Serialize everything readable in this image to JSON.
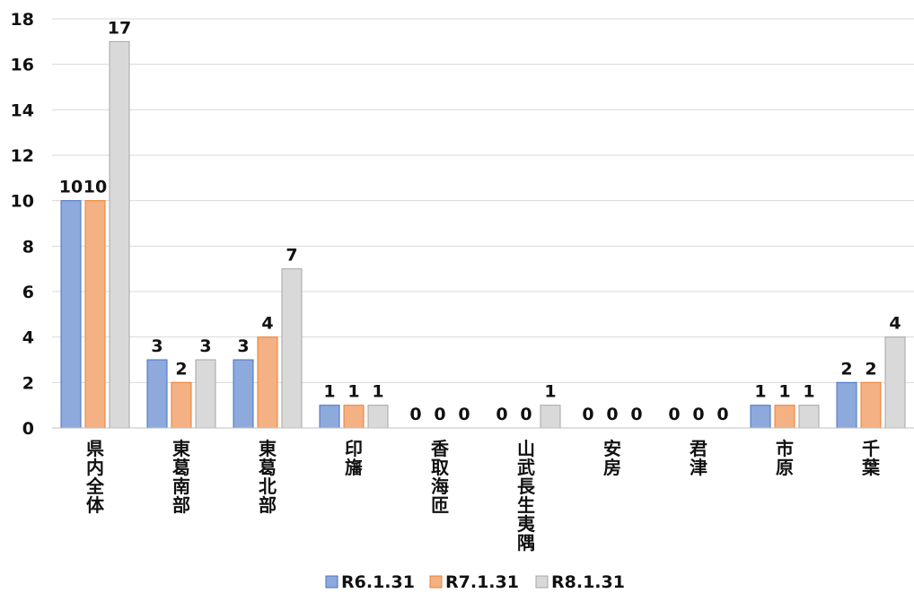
{
  "chart_data": {
    "type": "bar",
    "categories": [
      "県内全体",
      "東葛南部",
      "東葛北部",
      "印旛",
      "香取海匝",
      "山武長生夷隅",
      "安房",
      "君津",
      "市原",
      "千葉"
    ],
    "series": [
      {
        "name": "R6.1.31",
        "values": [
          10,
          3,
          3,
          1,
          0,
          0,
          0,
          0,
          1,
          2
        ],
        "color": "#8EA9DB",
        "stroke": "#4472C4"
      },
      {
        "name": "R7.1.31",
        "values": [
          10,
          2,
          4,
          1,
          0,
          0,
          0,
          0,
          1,
          2
        ],
        "color": "#F4B183",
        "stroke": "#ED7D31"
      },
      {
        "name": "R8.1.31",
        "values": [
          17,
          3,
          7,
          1,
          0,
          1,
          0,
          0,
          1,
          4
        ],
        "color": "#D9D9D9",
        "stroke": "#A5A5A5"
      }
    ],
    "ylim": [
      0,
      18
    ],
    "yticks": [
      0,
      2,
      4,
      6,
      8,
      10,
      12,
      14,
      16,
      18
    ],
    "grid": true,
    "legend": "bottom",
    "title": "",
    "xlabel": "",
    "ylabel": ""
  }
}
